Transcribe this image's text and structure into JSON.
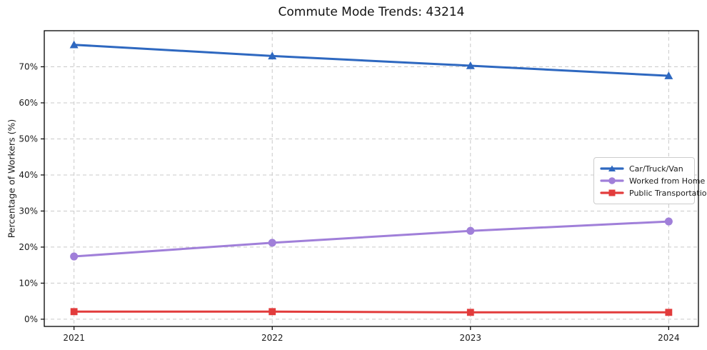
{
  "chart_data": {
    "type": "line",
    "title": "Commute Mode Trends: 43214",
    "xlabel": "",
    "ylabel": "Percentage of Workers (%)",
    "x": [
      2021,
      2022,
      2023,
      2024
    ],
    "x_tick_labels": [
      "2021",
      "2022",
      "2023",
      "2024"
    ],
    "series": [
      {
        "name": "Car/Truck/Van",
        "values": [
          76.1,
          73.0,
          70.3,
          67.5
        ],
        "color": "#2e68c0",
        "marker": "triangle"
      },
      {
        "name": "Worked from Home",
        "values": [
          17.4,
          21.2,
          24.5,
          27.1
        ],
        "color": "#a07fd9",
        "marker": "circle"
      },
      {
        "name": "Public Transportation",
        "values": [
          2.1,
          2.1,
          1.9,
          1.9
        ],
        "color": "#e23c3c",
        "marker": "square"
      }
    ],
    "yticks": [
      0,
      10,
      20,
      30,
      40,
      50,
      60,
      70
    ],
    "ytick_labels": [
      "0%",
      "10%",
      "20%",
      "30%",
      "40%",
      "50%",
      "60%",
      "70%"
    ],
    "ylim": [
      -2,
      80
    ],
    "xlim": [
      2020.85,
      2024.15
    ],
    "grid": true,
    "grid_style": "dashed",
    "legend_position": "center-right"
  },
  "colors": {
    "background": "#ffffff",
    "grid": "#c9c9c9",
    "spine": "#000000",
    "tick_text": "#1a1a1a"
  }
}
